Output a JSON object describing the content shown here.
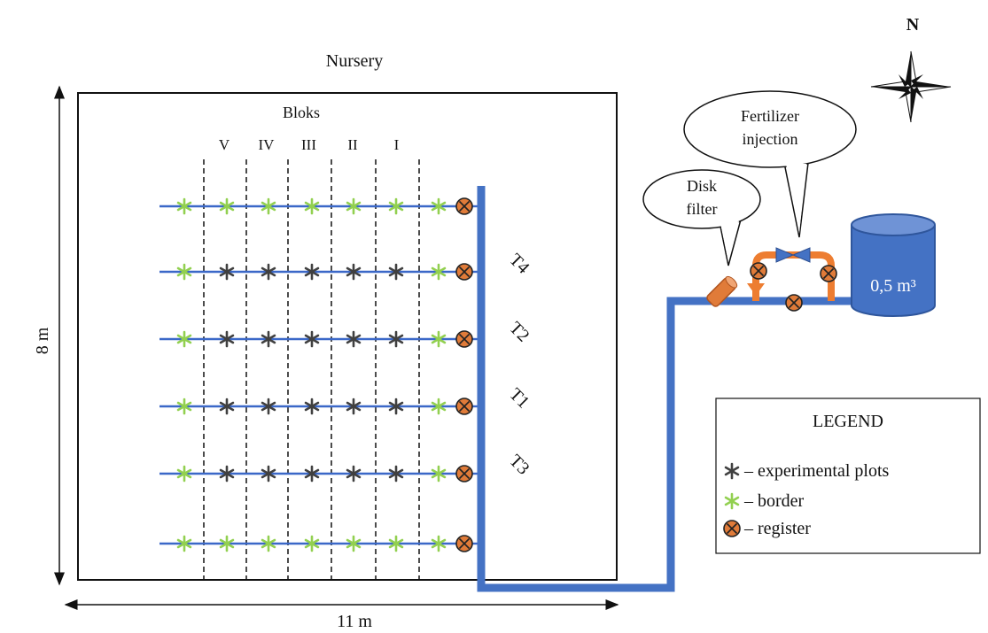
{
  "nursery_title": "Nursery",
  "blocks_title": "Bloks",
  "block_labels": [
    "V",
    "IV",
    "III",
    "II",
    "I"
  ],
  "treatment_labels": [
    "T4",
    "T2",
    "T1",
    "T3"
  ],
  "height_label": "8 m",
  "width_label": "11 m",
  "north_label": "N",
  "disk_filter": {
    "line1": "Disk",
    "line2": "filter"
  },
  "fertilizer": {
    "line1": "Fertilizer",
    "line2": "injection"
  },
  "tank_label": "0,5 m³",
  "legend": {
    "title": "LEGEND",
    "items": [
      {
        "symbol": "experimental-plot",
        "label": "– experimental plots"
      },
      {
        "symbol": "border",
        "label": "– border"
      },
      {
        "symbol": "register",
        "label": "– register"
      }
    ]
  },
  "rows": [
    [
      "border",
      "border",
      "border",
      "border",
      "border",
      "border",
      "border"
    ],
    [
      "border",
      "plot",
      "plot",
      "plot",
      "plot",
      "plot",
      "border"
    ],
    [
      "border",
      "plot",
      "plot",
      "plot",
      "plot",
      "plot",
      "border"
    ],
    [
      "border",
      "plot",
      "plot",
      "plot",
      "plot",
      "plot",
      "border"
    ],
    [
      "border",
      "plot",
      "plot",
      "plot",
      "plot",
      "plot",
      "border"
    ],
    [
      "border",
      "border",
      "border",
      "border",
      "border",
      "border",
      "border"
    ]
  ],
  "colors": {
    "pipe": "#4472c4",
    "lateral": "#3b68c8",
    "border_star": "#92d050",
    "plot_star": "#404040",
    "register_fill": "#e07b39",
    "tank_fill": "#4472c4",
    "tank_top": "#6f93d6",
    "fertilizer_pipe": "#ed7d31"
  }
}
